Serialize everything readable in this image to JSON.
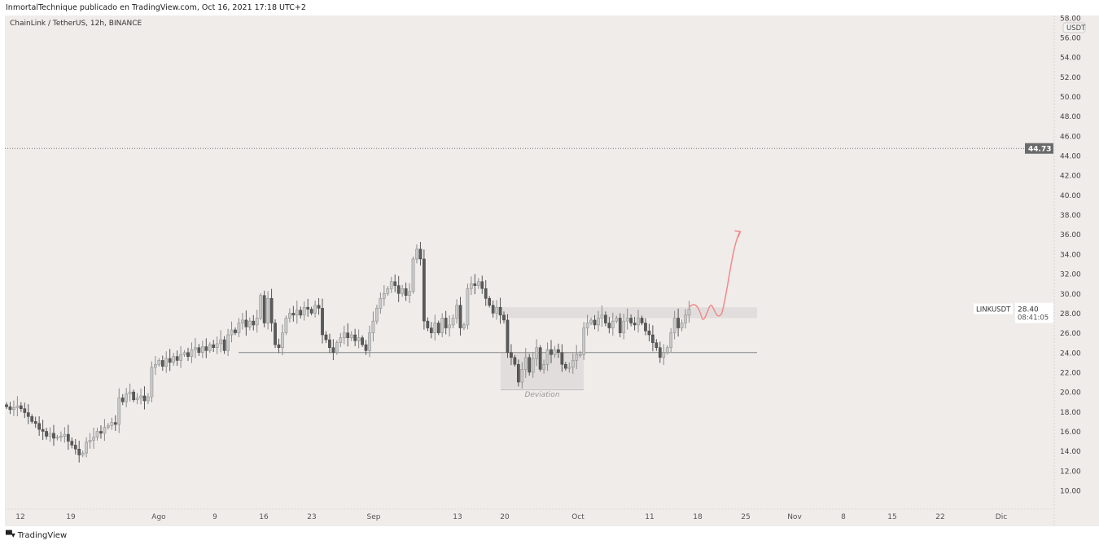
{
  "header": {
    "published": "InmortalTechnique publicado en TradingView.com, Oct 16, 2021 17:18 UTC+2"
  },
  "symbol_title": "ChainLink / TetherUS, 12h, BINANCE",
  "footer": {
    "brand": "TradingView",
    "logo": "TV"
  },
  "chart_data": {
    "type": "candlestick",
    "title": "ChainLink / TetherUS, 12h, BINANCE",
    "interval": "12h",
    "currency": "USDT",
    "ylim": [
      9,
      58
    ],
    "y_ticks": [
      "58.00",
      "56.00",
      "54.00",
      "52.00",
      "50.00",
      "48.00",
      "46.00",
      "44.00",
      "42.00",
      "40.00",
      "38.00",
      "36.00",
      "34.00",
      "32.00",
      "30.00",
      "28.00",
      "26.00",
      "24.00",
      "22.00",
      "20.00",
      "18.00",
      "16.00",
      "14.00",
      "12.00",
      "10.00"
    ],
    "x_ticks": [
      "12",
      "19",
      "Ago",
      "9",
      "16",
      "23",
      "Sep",
      "13",
      "20",
      "Oct",
      "11",
      "18",
      "25",
      "Nov",
      "8",
      "15",
      "22",
      "Dic"
    ],
    "closes": [
      18.5,
      18.2,
      18.4,
      18.6,
      18.3,
      17.9,
      17.5,
      17.0,
      16.8,
      16.2,
      16.0,
      15.5,
      15.8,
      15.3,
      15.4,
      15.5,
      15.7,
      15.0,
      14.6,
      14.2,
      13.6,
      13.8,
      14.9,
      15.1,
      15.4,
      16.0,
      15.8,
      16.4,
      16.6,
      16.9,
      16.7,
      19.4,
      19.0,
      19.8,
      20.0,
      19.2,
      19.4,
      19.6,
      19.1,
      19.5,
      22.5,
      22.8,
      23.2,
      22.6,
      23.4,
      23.0,
      23.6,
      23.2,
      23.8,
      24.0,
      23.6,
      24.3,
      24.5,
      24.0,
      24.6,
      24.2,
      24.8,
      24.5,
      24.9,
      25.3,
      24.2,
      25.8,
      26.3,
      26.0,
      27.0,
      27.3,
      26.6,
      27.2,
      26.8,
      27.5,
      29.8,
      27.0,
      29.5,
      27.0,
      24.8,
      24.5,
      26.0,
      27.5,
      28.0,
      27.8,
      28.3,
      27.8,
      28.6,
      28.4,
      28.0,
      28.8,
      28.5,
      25.8,
      25.3,
      24.5,
      24.0,
      25.0,
      25.5,
      26.0,
      25.5,
      25.8,
      25.2,
      25.5,
      24.8,
      24.2,
      26.0,
      27.2,
      28.5,
      29.5,
      30.0,
      30.5,
      31.2,
      30.8,
      30.0,
      30.5,
      29.8,
      30.2,
      33.5,
      34.5,
      33.5,
      27.2,
      26.5,
      26.0,
      27.0,
      26.0,
      27.5,
      26.5,
      26.8,
      27.5,
      28.8,
      26.5,
      26.8,
      30.5,
      31.0,
      30.8,
      31.2,
      30.5,
      29.5,
      28.8,
      28.0,
      28.6,
      27.8,
      27.3,
      24.0,
      23.5,
      22.8,
      21.0,
      22.3,
      23.5,
      22.0,
      23.4,
      24.5,
      22.3,
      22.8,
      24.3,
      23.8,
      24.3,
      24.0,
      22.8,
      22.4,
      22.5,
      23.2,
      23.8,
      23.8,
      26.5,
      27.0,
      27.3,
      26.8,
      27.5,
      27.8,
      27.0,
      26.5,
      27.2,
      27.5,
      26.0,
      27.2,
      27.5,
      27.0,
      26.8,
      27.5,
      27.0,
      26.2,
      25.8,
      25.0,
      24.5,
      23.5,
      24.0,
      24.5,
      26.0,
      27.5,
      26.5,
      27.0,
      27.8,
      28.4
    ],
    "support_level": 24.0,
    "resistance_zone": [
      27.5,
      28.6
    ],
    "deviation_zone": [
      20.3,
      24.0
    ],
    "deviation_label": "Deviation",
    "dotted_level": {
      "value": 44.73,
      "label": "44.73"
    },
    "last_price": {
      "symbol": "LINKUSDT",
      "price": "28.40",
      "countdown": "08:41:05"
    },
    "projection_target": 36.2,
    "colors": {
      "up": "#c9c9c9",
      "down": "#5a5a5a",
      "projection": "#f08a8a",
      "badge": "#6b6b6b"
    }
  }
}
